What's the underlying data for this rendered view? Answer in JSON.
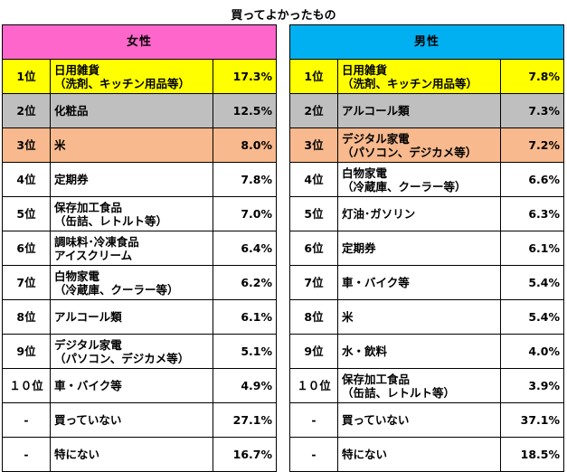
{
  "title": "買ってよかったもの",
  "colors": {
    "female_header": "#ff66cc",
    "male_header": "#00b0f0",
    "rank1": "#ffff00",
    "rank2": "#bfbfbf",
    "rank3": "#f7b98d"
  },
  "chart_data": [
    {
      "type": "table",
      "title": "女性",
      "rows": [
        {
          "rank": "1位",
          "item": "日用雑貨\n（洗剤、キッチン用品等）",
          "percent": "17.3%"
        },
        {
          "rank": "2位",
          "item": "化粧品",
          "percent": "12.5%"
        },
        {
          "rank": "3位",
          "item": "米",
          "percent": "8.0%"
        },
        {
          "rank": "4位",
          "item": "定期券",
          "percent": "7.8%"
        },
        {
          "rank": "5位",
          "item": "保存加工食品\n（缶詰、レトルト等）",
          "percent": "7.0%"
        },
        {
          "rank": "6位",
          "item": "調味料･冷凍食品\nアイスクリーム",
          "percent": "6.4%"
        },
        {
          "rank": "7位",
          "item": "白物家電\n（冷蔵庫、クーラー等）",
          "percent": "6.2%"
        },
        {
          "rank": "8位",
          "item": "アルコール類",
          "percent": "6.1%"
        },
        {
          "rank": "9位",
          "item": "デジタル家電\n（パソコン、デジカメ等）",
          "percent": "5.1%"
        },
        {
          "rank": "１０位",
          "item": "車・バイク等",
          "percent": "4.9%"
        },
        {
          "rank": "-",
          "item": "買っていない",
          "percent": "27.1%"
        },
        {
          "rank": "-",
          "item": "特にない",
          "percent": "16.7%"
        }
      ]
    },
    {
      "type": "table",
      "title": "男性",
      "rows": [
        {
          "rank": "1位",
          "item": "日用雑貨\n（洗剤、キッチン用品等）",
          "percent": "7.8%"
        },
        {
          "rank": "2位",
          "item": "アルコール類",
          "percent": "7.3%"
        },
        {
          "rank": "3位",
          "item": "デジタル家電\n（パソコン、デジカメ等）",
          "percent": "7.2%"
        },
        {
          "rank": "4位",
          "item": "白物家電\n（冷蔵庫、クーラー等）",
          "percent": "6.6%"
        },
        {
          "rank": "5位",
          "item": "灯油･ガソリン",
          "percent": "6.3%"
        },
        {
          "rank": "6位",
          "item": "定期券",
          "percent": "6.1%"
        },
        {
          "rank": "7位",
          "item": "車・バイク等",
          "percent": "5.4%"
        },
        {
          "rank": "8位",
          "item": "米",
          "percent": "5.4%"
        },
        {
          "rank": "9位",
          "item": "水・飲料",
          "percent": "4.0%"
        },
        {
          "rank": "１０位",
          "item": "保存加工食品\n（缶詰、レトルト等）",
          "percent": "3.9%"
        },
        {
          "rank": "-",
          "item": "買っていない",
          "percent": "37.1%"
        },
        {
          "rank": "-",
          "item": "特にない",
          "percent": "18.5%"
        }
      ]
    }
  ]
}
